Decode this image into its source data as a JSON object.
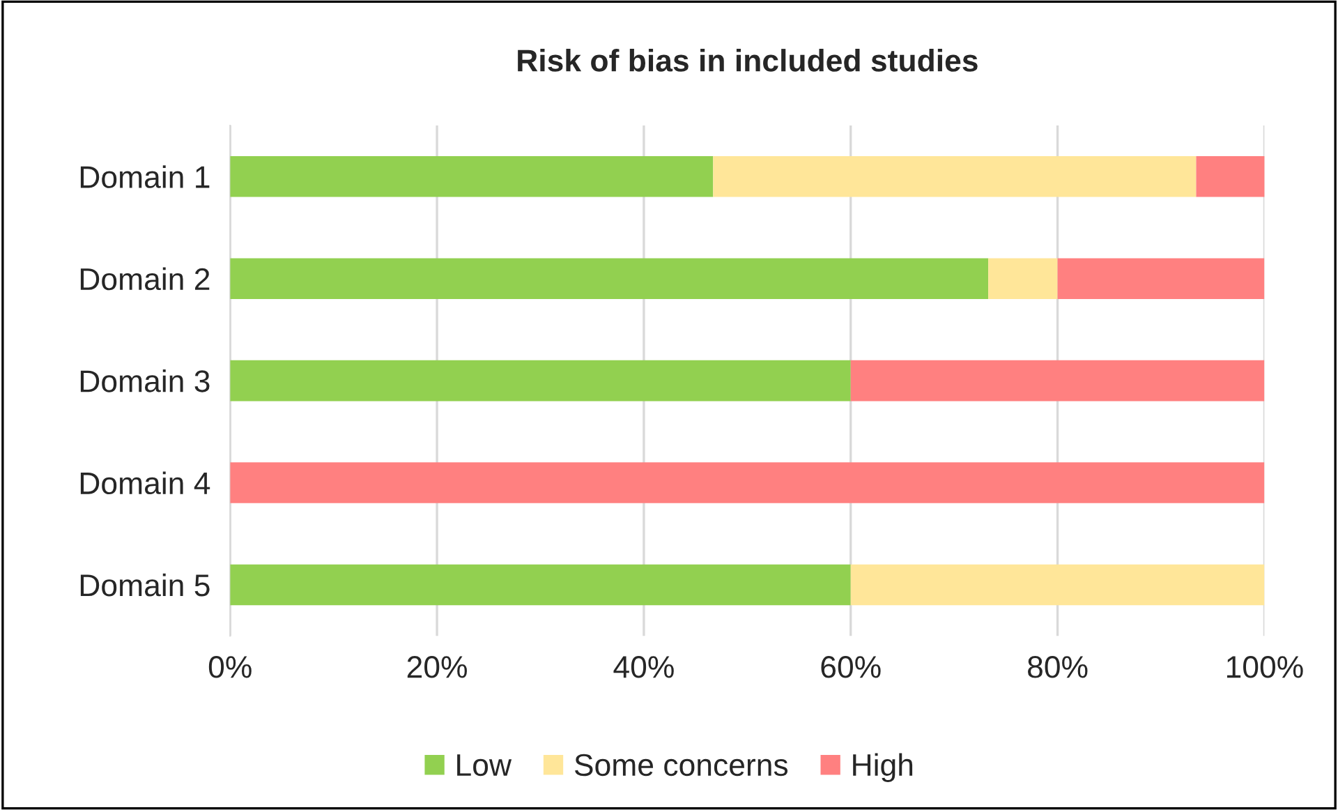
{
  "chart_data": {
    "type": "bar",
    "orientation": "horizontal",
    "stacked": true,
    "title": "Risk of bias in included studies",
    "categories": [
      "Domain 1",
      "Domain 2",
      "Domain 3",
      "Domain 4",
      "Domain 5"
    ],
    "series": [
      {
        "name": "Low",
        "color": "#92d050",
        "values": [
          46.7,
          73.3,
          60,
          0,
          60
        ]
      },
      {
        "name": "Some concerns",
        "color": "#ffe699",
        "values": [
          46.7,
          6.7,
          0,
          0,
          40
        ]
      },
      {
        "name": "High",
        "color": "#ff8080",
        "values": [
          6.7,
          20,
          40,
          100,
          0
        ]
      }
    ],
    "xlim": [
      0,
      100
    ],
    "xticks": [
      {
        "value": 0,
        "label": "0%"
      },
      {
        "value": 20,
        "label": "20%"
      },
      {
        "value": 40,
        "label": "40%"
      },
      {
        "value": 60,
        "label": "60%"
      },
      {
        "value": 80,
        "label": "80%"
      },
      {
        "value": 100,
        "label": "100%"
      }
    ],
    "grid": "x",
    "legend": "bottom"
  }
}
